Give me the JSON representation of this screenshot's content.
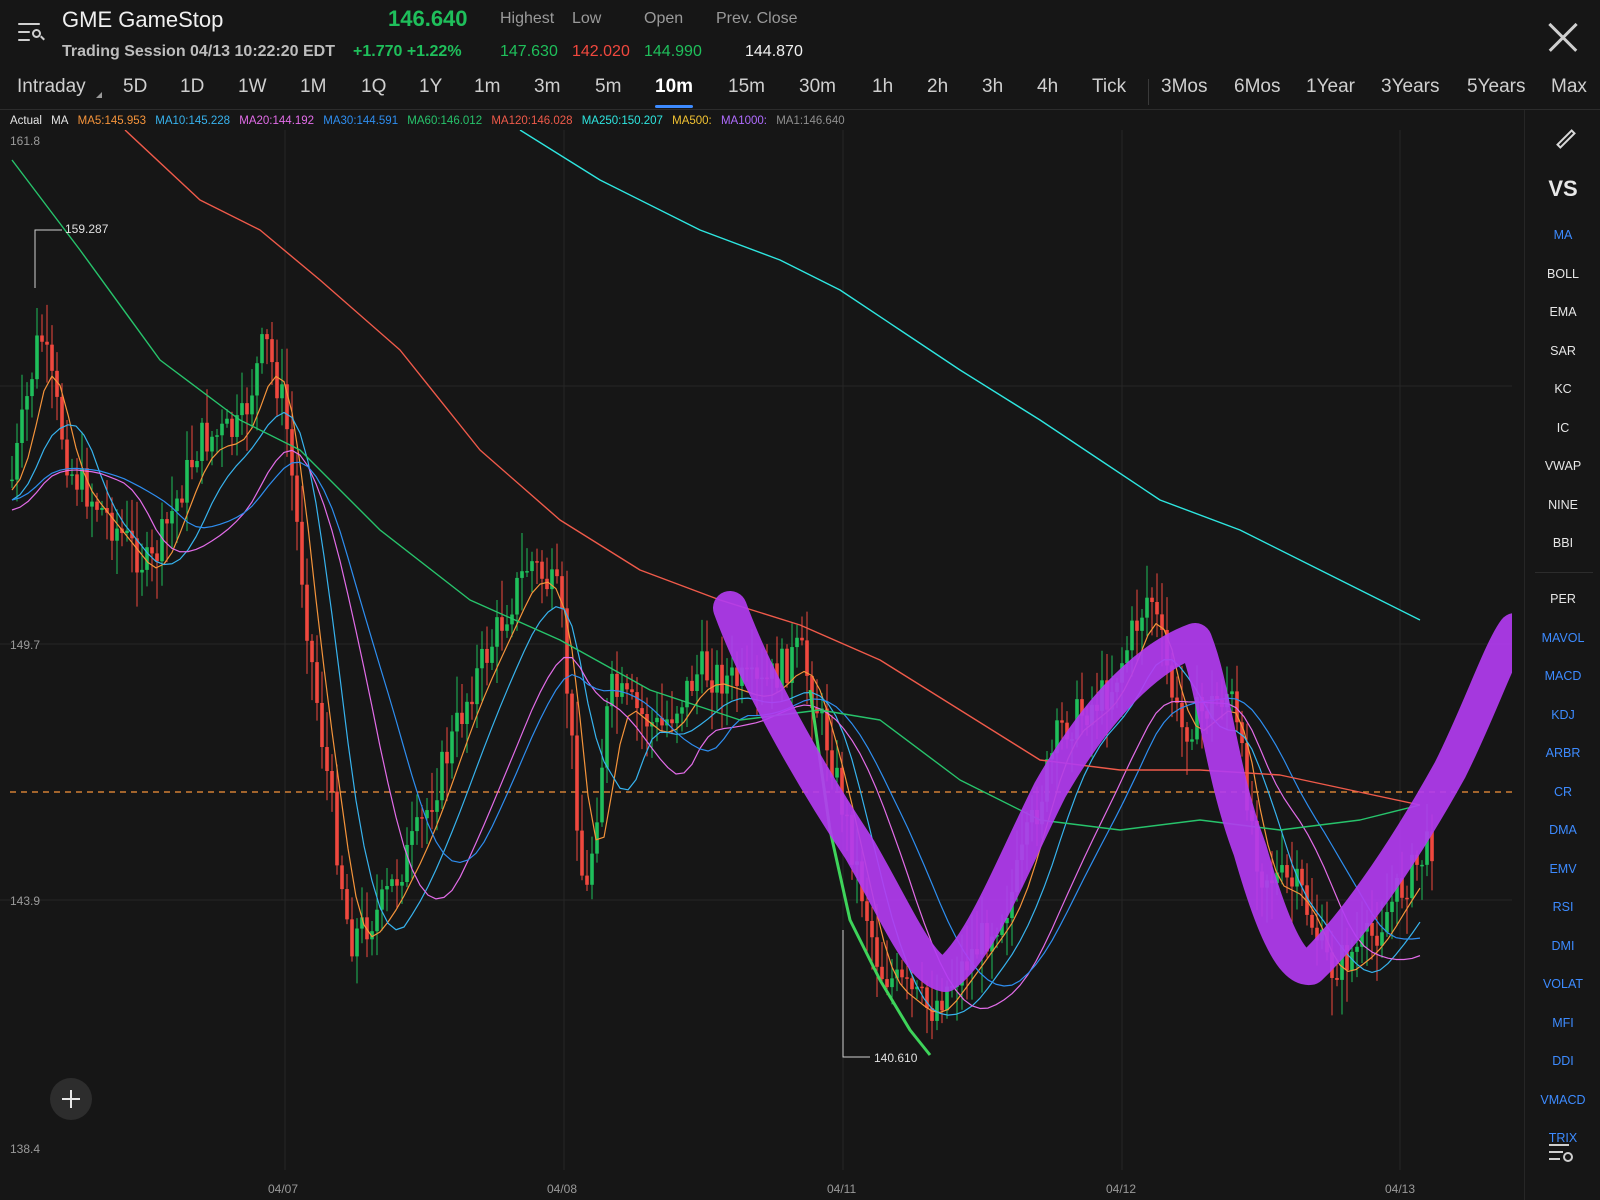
{
  "header": {
    "ticker_name": "GME GameStop",
    "last_price": "146.640",
    "session": "Trading Session 04/13 10:22:20 EDT",
    "change": "+1.770  +1.22%",
    "stats": {
      "highest_label": "Highest",
      "low_label": "Low",
      "open_label": "Open",
      "prev_close_label": "Prev. Close",
      "highest": "147.630",
      "low": "142.020",
      "open": "144.990",
      "prev_close": "144.870"
    },
    "colors": {
      "up": "#1fbf5b",
      "down": "#f0483e"
    }
  },
  "tabs": {
    "active": "10m",
    "items": [
      "Intraday",
      "5D",
      "1D",
      "1W",
      "1M",
      "1Q",
      "1Y",
      "1m",
      "3m",
      "5m",
      "10m",
      "15m",
      "30m",
      "1h",
      "2h",
      "3h",
      "4h",
      "Tick",
      "3Mos",
      "6Mos",
      "1Year",
      "3Years",
      "5Years",
      "Max"
    ]
  },
  "legend": {
    "actual": "Actual",
    "ma": "MA",
    "items": [
      {
        "text": "MA5:145.953",
        "color": "#f5943b"
      },
      {
        "text": "MA10:145.228",
        "color": "#37b3ee"
      },
      {
        "text": "MA20:144.192",
        "color": "#e26ce8"
      },
      {
        "text": "MA30:144.591",
        "color": "#2e8ef0"
      },
      {
        "text": "MA60:146.012",
        "color": "#27c36b"
      },
      {
        "text": "MA120:146.028",
        "color": "#ef5a4a"
      },
      {
        "text": "MA250:150.207",
        "color": "#2ee6e0"
      },
      {
        "text": "MA500:",
        "color": "#f1c232"
      },
      {
        "text": "MA1000:",
        "color": "#b06cff"
      },
      {
        "text": "MA1:146.640",
        "color": "#8f8f8f"
      }
    ]
  },
  "chart": {
    "y_ticks": [
      "161.8",
      "149.7",
      "143.9",
      "138.4"
    ],
    "x_ticks": [
      "04/07",
      "04/08",
      "04/11",
      "04/12",
      "04/13"
    ],
    "high_marker": "159.287",
    "low_marker": "140.610",
    "current_price_line": 146.64,
    "annotation": "hand-drawn purple W shape"
  },
  "sidebar": {
    "vs": "VS",
    "group1": [
      "MA",
      "BOLL",
      "EMA",
      "SAR",
      "KC",
      "IC",
      "VWAP",
      "NINE",
      "BBI"
    ],
    "group2": [
      "PER",
      "MAVOL",
      "MACD",
      "KDJ",
      "ARBR",
      "CR",
      "DMA",
      "EMV",
      "RSI",
      "DMI",
      "VOLAT",
      "MFI",
      "DDI",
      "VMACD",
      "TRIX"
    ],
    "highlighted": [
      "MA",
      "MAVOL",
      "MACD",
      "KDJ",
      "ARBR",
      "CR",
      "DMA",
      "EMV",
      "RSI",
      "DMI",
      "VOLAT",
      "MFI",
      "DDI",
      "VMACD",
      "TRIX"
    ],
    "highlight_color": "#3d8bff"
  }
}
